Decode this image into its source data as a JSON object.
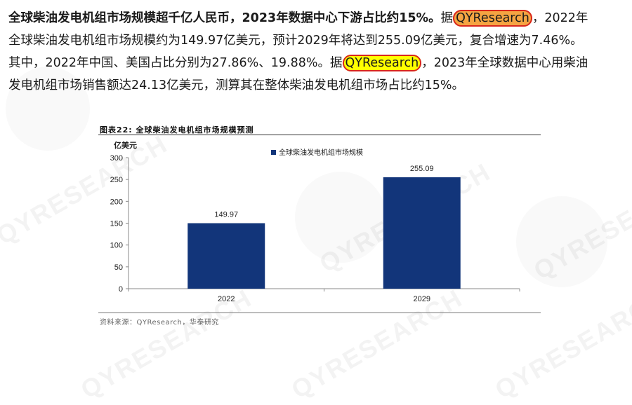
{
  "paragraph": {
    "line1_bold": "全球柴油发电机组市场规模超千亿人民币，2023年数据中心下游占比约15%。",
    "line1_pre": "据",
    "line1_hl": "QYResearch",
    "line1_post": "，2022年",
    "line2": "全球柴油发电机组市场规模约为149.97亿美元，预计2029年将达到255.09亿美元，复合增速为7.46%。",
    "line3_pre": "其中，2022年中国、美国占比分别为27.86%、19.88%。据",
    "line3_hl": "QYResearch",
    "line3_post": "，2023年全球数据中心用柴油",
    "line4": "发电机组市场销售额达24.13亿美元，测算其在整体柴油发电机组市场占比约15%。"
  },
  "figure": {
    "title": "图表22:  全球柴油发电机组市场规模预测",
    "source": "资料来源：QYResearch，华泰研究"
  },
  "watermark": "QYRESEARCH",
  "colors": {
    "bar": "#12357a",
    "highlight_orange": "#f5a442",
    "highlight_yellow": "#ffff00",
    "circle": "#d9261c"
  },
  "chart_data": {
    "type": "bar",
    "categories": [
      "2022",
      "2029"
    ],
    "series": [
      {
        "name": "全球柴油发电机组市场规模",
        "values": [
          149.97,
          255.09
        ]
      }
    ],
    "data_labels": [
      "149.97",
      "255.09"
    ],
    "ylabel": "亿美元",
    "ylim": [
      0,
      300
    ],
    "yticks": [
      0,
      50,
      100,
      150,
      200,
      250,
      300
    ],
    "legend": "top-center",
    "grid": false
  }
}
